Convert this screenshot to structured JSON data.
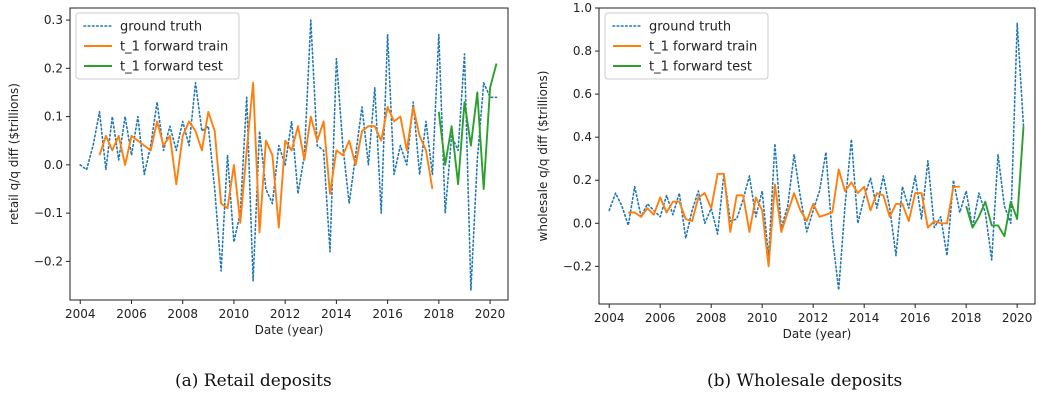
{
  "chart_data": [
    {
      "type": "line",
      "caption": "(a) Retail deposits",
      "xlabel": "Date (year)",
      "ylabel": "retail q/q diff ($trillions)",
      "xlim": [
        2003.6,
        2020.7
      ],
      "ylim": [
        -0.28,
        0.325
      ],
      "xticks": [
        2004,
        2006,
        2008,
        2010,
        2012,
        2014,
        2016,
        2018,
        2020
      ],
      "yticks": [
        -0.2,
        -0.1,
        0.0,
        0.1,
        0.2,
        0.3
      ],
      "ytick_labels": [
        "−0.2",
        "−0.1",
        "0.0",
        "0.1",
        "0.2",
        "0.3"
      ],
      "legend_position": "top-left",
      "series": [
        {
          "name": "ground truth",
          "color": "#1f77b4",
          "style": "dotted",
          "x": [
            2004.0,
            2004.25,
            2004.5,
            2004.75,
            2005.0,
            2005.25,
            2005.5,
            2005.75,
            2006.0,
            2006.25,
            2006.5,
            2006.75,
            2007.0,
            2007.25,
            2007.5,
            2007.75,
            2008.0,
            2008.25,
            2008.5,
            2008.75,
            2009.0,
            2009.25,
            2009.5,
            2009.75,
            2010.0,
            2010.25,
            2010.5,
            2010.75,
            2011.0,
            2011.25,
            2011.5,
            2011.75,
            2012.0,
            2012.25,
            2012.5,
            2012.75,
            2013.0,
            2013.25,
            2013.5,
            2013.75,
            2014.0,
            2014.25,
            2014.5,
            2014.75,
            2015.0,
            2015.25,
            2015.5,
            2015.75,
            2016.0,
            2016.25,
            2016.5,
            2016.75,
            2017.0,
            2017.25,
            2017.5,
            2017.75,
            2018.0,
            2018.25,
            2018.5,
            2018.75,
            2019.0,
            2019.25,
            2019.5,
            2019.75,
            2020.0,
            2020.25
          ],
          "y": [
            0.0,
            -0.01,
            0.04,
            0.11,
            -0.01,
            0.1,
            0.01,
            0.1,
            0.02,
            0.1,
            -0.02,
            0.04,
            0.13,
            0.03,
            0.08,
            0.03,
            0.09,
            0.04,
            0.17,
            0.07,
            0.08,
            -0.05,
            -0.22,
            0.02,
            -0.16,
            -0.1,
            0.14,
            -0.24,
            0.07,
            -0.05,
            -0.08,
            0.04,
            0.0,
            0.09,
            -0.06,
            0.02,
            0.3,
            0.04,
            0.03,
            -0.18,
            0.22,
            0.04,
            -0.08,
            0.02,
            0.12,
            0.0,
            0.16,
            -0.1,
            0.27,
            -0.02,
            0.04,
            0.0,
            0.13,
            -0.02,
            0.09,
            -0.02,
            0.27,
            -0.1,
            0.06,
            0.03,
            0.23,
            -0.26,
            0.01,
            0.17,
            0.14,
            0.14
          ]
        },
        {
          "name": "t_1 forward train",
          "color": "#ff7f0e",
          "style": "solid",
          "x": [
            2004.75,
            2005.0,
            2005.25,
            2005.5,
            2005.75,
            2006.0,
            2006.25,
            2006.5,
            2006.75,
            2007.0,
            2007.25,
            2007.5,
            2007.75,
            2008.0,
            2008.25,
            2008.5,
            2008.75,
            2009.0,
            2009.25,
            2009.5,
            2009.75,
            2010.0,
            2010.25,
            2010.5,
            2010.75,
            2011.0,
            2011.25,
            2011.5,
            2011.75,
            2012.0,
            2012.25,
            2012.5,
            2012.75,
            2013.0,
            2013.25,
            2013.5,
            2013.75,
            2014.0,
            2014.25,
            2014.5,
            2014.75,
            2015.0,
            2015.25,
            2015.5,
            2015.75,
            2016.0,
            2016.25,
            2016.5,
            2016.75,
            2017.0,
            2017.25,
            2017.5,
            2017.75
          ],
          "y": [
            0.02,
            0.06,
            0.03,
            0.06,
            0.0,
            0.06,
            0.05,
            0.04,
            0.03,
            0.09,
            0.04,
            0.06,
            -0.04,
            0.06,
            0.09,
            0.07,
            0.03,
            0.11,
            0.07,
            -0.08,
            -0.09,
            0.0,
            -0.12,
            0.03,
            0.17,
            -0.14,
            0.05,
            0.02,
            -0.13,
            0.05,
            0.03,
            0.08,
            0.01,
            0.1,
            0.05,
            0.09,
            -0.06,
            0.03,
            0.02,
            0.05,
            0.0,
            0.07,
            0.08,
            0.08,
            0.05,
            0.12,
            0.09,
            0.1,
            0.03,
            0.12,
            0.06,
            0.03,
            -0.05
          ]
        },
        {
          "name": "t_1 forward test",
          "color": "#2ca02c",
          "style": "solid",
          "x": [
            2018.0,
            2018.25,
            2018.5,
            2018.75,
            2019.0,
            2019.25,
            2019.5,
            2019.75,
            2020.0,
            2020.25
          ],
          "y": [
            0.11,
            0.0,
            0.08,
            -0.04,
            0.13,
            0.04,
            0.15,
            -0.05,
            0.16,
            0.21
          ]
        }
      ]
    },
    {
      "type": "line",
      "caption": "(b) Wholesale deposits",
      "xlabel": "Date (year)",
      "ylabel": "wholesale q/q diff ($trillions)",
      "xlim": [
        2003.6,
        2020.7
      ],
      "ylim": [
        -0.375,
        1.0
      ],
      "xticks": [
        2004,
        2006,
        2008,
        2010,
        2012,
        2014,
        2016,
        2018,
        2020
      ],
      "yticks": [
        -0.2,
        0.0,
        0.2,
        0.4,
        0.6,
        0.8,
        1.0
      ],
      "ytick_labels": [
        "−0.2",
        "0.0",
        "0.2",
        "0.4",
        "0.6",
        "0.8",
        "1.0"
      ],
      "legend_position": "top-left",
      "series": [
        {
          "name": "ground truth",
          "color": "#1f77b4",
          "style": "dotted",
          "x": [
            2004.0,
            2004.25,
            2004.5,
            2004.75,
            2005.0,
            2005.25,
            2005.5,
            2005.75,
            2006.0,
            2006.25,
            2006.5,
            2006.75,
            2007.0,
            2007.25,
            2007.5,
            2007.75,
            2008.0,
            2008.25,
            2008.5,
            2008.75,
            2009.0,
            2009.25,
            2009.5,
            2009.75,
            2010.0,
            2010.25,
            2010.5,
            2010.75,
            2011.0,
            2011.25,
            2011.5,
            2011.75,
            2012.0,
            2012.25,
            2012.5,
            2012.75,
            2013.0,
            2013.25,
            2013.5,
            2013.75,
            2014.0,
            2014.25,
            2014.5,
            2014.75,
            2015.0,
            2015.25,
            2015.5,
            2015.75,
            2016.0,
            2016.25,
            2016.5,
            2016.75,
            2017.0,
            2017.25,
            2017.5,
            2017.75,
            2018.0,
            2018.25,
            2018.5,
            2018.75,
            2019.0,
            2019.25,
            2019.5,
            2019.75,
            2020.0,
            2020.25
          ],
          "y": [
            0.06,
            0.14,
            0.08,
            -0.01,
            0.17,
            0.03,
            0.09,
            0.06,
            0.03,
            0.13,
            0.04,
            0.14,
            -0.07,
            0.06,
            0.15,
            0.0,
            0.07,
            -0.05,
            0.23,
            0.01,
            0.02,
            0.11,
            0.22,
            0.03,
            0.15,
            -0.16,
            0.37,
            -0.02,
            0.08,
            0.32,
            0.12,
            -0.04,
            0.06,
            0.15,
            0.33,
            -0.06,
            -0.31,
            0.08,
            0.39,
            0.0,
            0.12,
            0.21,
            0.07,
            0.22,
            0.07,
            -0.15,
            0.17,
            0.07,
            0.22,
            0.02,
            0.29,
            -0.02,
            0.03,
            -0.15,
            0.2,
            0.05,
            0.15,
            -0.02,
            0.14,
            0.05,
            -0.17,
            0.32,
            0.08,
            0.0,
            0.93,
            0.45
          ]
        },
        {
          "name": "t_1 forward train",
          "color": "#ff7f0e",
          "style": "solid",
          "x": [
            2004.75,
            2005.0,
            2005.25,
            2005.5,
            2005.75,
            2006.0,
            2006.25,
            2006.5,
            2006.75,
            2007.0,
            2007.25,
            2007.5,
            2007.75,
            2008.0,
            2008.25,
            2008.5,
            2008.75,
            2009.0,
            2009.25,
            2009.5,
            2009.75,
            2010.0,
            2010.25,
            2010.5,
            2010.75,
            2011.0,
            2011.25,
            2011.5,
            2011.75,
            2012.0,
            2012.25,
            2012.5,
            2012.75,
            2013.0,
            2013.25,
            2013.5,
            2013.75,
            2014.0,
            2014.25,
            2014.5,
            2014.75,
            2015.0,
            2015.25,
            2015.5,
            2015.75,
            2016.0,
            2016.25,
            2016.5,
            2016.75,
            2017.0,
            2017.25,
            2017.5,
            2017.75
          ],
          "y": [
            0.05,
            0.05,
            0.03,
            0.07,
            0.04,
            0.12,
            0.05,
            0.1,
            0.1,
            0.02,
            0.01,
            0.12,
            0.14,
            0.07,
            0.23,
            0.23,
            -0.04,
            0.13,
            0.13,
            -0.04,
            0.12,
            0.06,
            -0.2,
            0.18,
            -0.04,
            0.05,
            0.14,
            0.06,
            0.01,
            0.09,
            0.03,
            0.04,
            0.05,
            0.25,
            0.15,
            0.19,
            0.14,
            0.17,
            0.06,
            0.14,
            0.13,
            0.03,
            0.09,
            0.09,
            0.01,
            0.14,
            0.14,
            -0.02,
            0.01,
            0.0,
            0.0,
            0.17,
            0.17
          ]
        },
        {
          "name": "t_1 forward test",
          "color": "#2ca02c",
          "style": "solid",
          "x": [
            2018.0,
            2018.25,
            2018.5,
            2018.75,
            2019.0,
            2019.25,
            2019.5,
            2019.75,
            2020.0,
            2020.25
          ],
          "y": [
            0.08,
            -0.02,
            0.03,
            0.1,
            -0.01,
            -0.01,
            -0.06,
            0.1,
            0.02,
            0.45
          ]
        }
      ]
    }
  ]
}
